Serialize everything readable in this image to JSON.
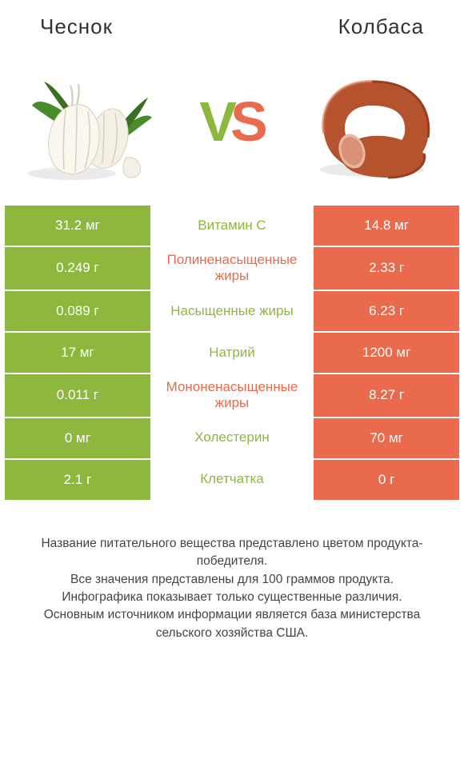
{
  "colors": {
    "left": "#8eb73e",
    "right": "#e96a4c",
    "vs_v": "#8eb73e",
    "vs_s": "#e96a4c"
  },
  "header": {
    "left": "Чеснок",
    "right": "Колбаса"
  },
  "vs": {
    "v": "V",
    "s": "S"
  },
  "rows": [
    {
      "l": "31.2 мг",
      "m": "Витамин C",
      "r": "14.8 мг",
      "mcolor": "left"
    },
    {
      "l": "0.249 г",
      "m": "Полиненасыщенные жиры",
      "r": "2.33 г",
      "mcolor": "right"
    },
    {
      "l": "0.089 г",
      "m": "Насыщенные жиры",
      "r": "6.23 г",
      "mcolor": "left"
    },
    {
      "l": "17 мг",
      "m": "Натрий",
      "r": "1200 мг",
      "mcolor": "left"
    },
    {
      "l": "0.011 г",
      "m": "Мононенасыщенные жиры",
      "r": "8.27 г",
      "mcolor": "right"
    },
    {
      "l": "0 мг",
      "m": "Холестерин",
      "r": "70 мг",
      "mcolor": "left"
    },
    {
      "l": "2.1 г",
      "m": "Клетчатка",
      "r": "0 г",
      "mcolor": "left"
    }
  ],
  "footer": {
    "l1": "Название питательного вещества представлено цветом продукта-победителя.",
    "l2": "Все значения представлены для 100 граммов продукта.",
    "l3": "Инфографика показывает только существенные различия.",
    "l4": "Основным источником информации является база министерства сельского хозяйства США."
  }
}
